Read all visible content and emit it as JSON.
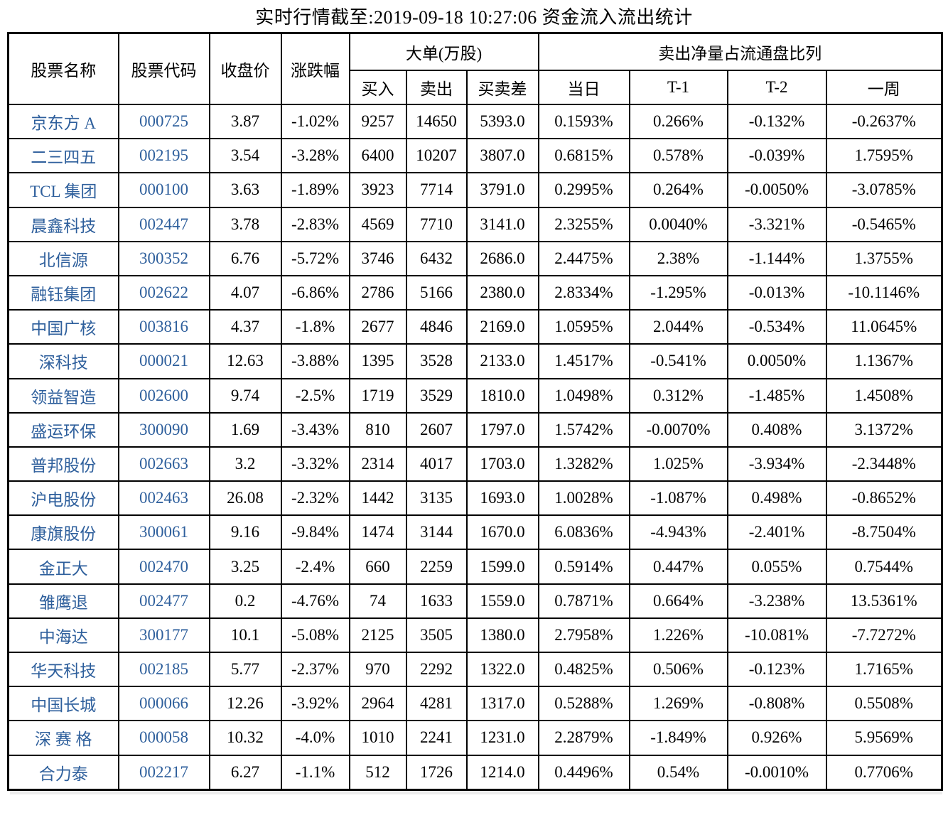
{
  "title": "实时行情截至:2019-09-18 10:27:06 资金流入流出统计",
  "colors": {
    "stock_link_blue": "#2E5F9C",
    "grid_border": "#000000",
    "text": "#000000",
    "background": "#ffffff"
  },
  "table": {
    "header": {
      "stock_name": "股票名称",
      "stock_code": "股票代码",
      "close_price": "收盘价",
      "change_pct": "涨跌幅",
      "big_orders_group": "大单(万股)",
      "big_orders_cols": [
        "买入",
        "卖出",
        "买卖差"
      ],
      "net_sell_group": "卖出净量占流通盘比列",
      "net_sell_cols": [
        "当日",
        "T-1",
        "T-2",
        "一周"
      ]
    },
    "rows": [
      [
        "京东方 A",
        "000725",
        "3.87",
        "-1.02%",
        "9257",
        "14650",
        "5393.0",
        "0.1593%",
        "0.266%",
        "-0.132%",
        "-0.2637%"
      ],
      [
        "二三四五",
        "002195",
        "3.54",
        "-3.28%",
        "6400",
        "10207",
        "3807.0",
        "0.6815%",
        "0.578%",
        "-0.039%",
        "1.7595%"
      ],
      [
        "TCL 集团",
        "000100",
        "3.63",
        "-1.89%",
        "3923",
        "7714",
        "3791.0",
        "0.2995%",
        "0.264%",
        "-0.0050%",
        "-3.0785%"
      ],
      [
        "晨鑫科技",
        "002447",
        "3.78",
        "-2.83%",
        "4569",
        "7710",
        "3141.0",
        "2.3255%",
        "0.0040%",
        "-3.321%",
        "-0.5465%"
      ],
      [
        "北信源",
        "300352",
        "6.76",
        "-5.72%",
        "3746",
        "6432",
        "2686.0",
        "2.4475%",
        "2.38%",
        "-1.144%",
        "1.3755%"
      ],
      [
        "融钰集团",
        "002622",
        "4.07",
        "-6.86%",
        "2786",
        "5166",
        "2380.0",
        "2.8334%",
        "-1.295%",
        "-0.013%",
        "-10.1146%"
      ],
      [
        "中国广核",
        "003816",
        "4.37",
        "-1.8%",
        "2677",
        "4846",
        "2169.0",
        "1.0595%",
        "2.044%",
        "-0.534%",
        "11.0645%"
      ],
      [
        "深科技",
        "000021",
        "12.63",
        "-3.88%",
        "1395",
        "3528",
        "2133.0",
        "1.4517%",
        "-0.541%",
        "0.0050%",
        "1.1367%"
      ],
      [
        "领益智造",
        "002600",
        "9.74",
        "-2.5%",
        "1719",
        "3529",
        "1810.0",
        "1.0498%",
        "0.312%",
        "-1.485%",
        "1.4508%"
      ],
      [
        "盛运环保",
        "300090",
        "1.69",
        "-3.43%",
        "810",
        "2607",
        "1797.0",
        "1.5742%",
        "-0.0070%",
        "0.408%",
        "3.1372%"
      ],
      [
        "普邦股份",
        "002663",
        "3.2",
        "-3.32%",
        "2314",
        "4017",
        "1703.0",
        "1.3282%",
        "1.025%",
        "-3.934%",
        "-2.3448%"
      ],
      [
        "沪电股份",
        "002463",
        "26.08",
        "-2.32%",
        "1442",
        "3135",
        "1693.0",
        "1.0028%",
        "-1.087%",
        "0.498%",
        "-0.8652%"
      ],
      [
        "康旗股份",
        "300061",
        "9.16",
        "-9.84%",
        "1474",
        "3144",
        "1670.0",
        "6.0836%",
        "-4.943%",
        "-2.401%",
        "-8.7504%"
      ],
      [
        "金正大",
        "002470",
        "3.25",
        "-2.4%",
        "660",
        "2259",
        "1599.0",
        "0.5914%",
        "0.447%",
        "0.055%",
        "0.7544%"
      ],
      [
        "雏鹰退",
        "002477",
        "0.2",
        "-4.76%",
        "74",
        "1633",
        "1559.0",
        "0.7871%",
        "0.664%",
        "-3.238%",
        "13.5361%"
      ],
      [
        "中海达",
        "300177",
        "10.1",
        "-5.08%",
        "2125",
        "3505",
        "1380.0",
        "2.7958%",
        "1.226%",
        "-10.081%",
        "-7.7272%"
      ],
      [
        "华天科技",
        "002185",
        "5.77",
        "-2.37%",
        "970",
        "2292",
        "1322.0",
        "0.4825%",
        "0.506%",
        "-0.123%",
        "1.7165%"
      ],
      [
        "中国长城",
        "000066",
        "12.26",
        "-3.92%",
        "2964",
        "4281",
        "1317.0",
        "0.5288%",
        "1.269%",
        "-0.808%",
        "0.5508%"
      ],
      [
        "深 赛 格",
        "000058",
        "10.32",
        "-4.0%",
        "1010",
        "2241",
        "1231.0",
        "2.2879%",
        "-1.849%",
        "0.926%",
        "5.9569%"
      ],
      [
        "合力泰",
        "002217",
        "6.27",
        "-1.1%",
        "512",
        "1726",
        "1214.0",
        "0.4496%",
        "0.54%",
        "-0.0010%",
        "0.7706%"
      ]
    ]
  }
}
